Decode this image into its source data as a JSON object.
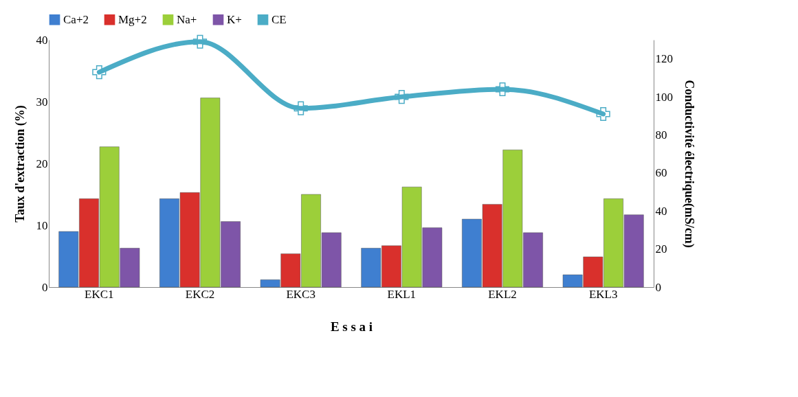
{
  "chart_data": {
    "type": "bar",
    "xlabel": "E s s a i",
    "ylabel": "Taux  d'extraction (%)",
    "y2label": "Conductivité électrique(mS/cm)",
    "categories": [
      "EKC1",
      "EKC2",
      "EKC3",
      "EKL1",
      "EKL2",
      "EKL3"
    ],
    "series": [
      {
        "name": "Ca+2",
        "color": "#3f7fd0",
        "values": [
          9.0,
          14.3,
          1.2,
          6.3,
          11.0,
          2.0
        ]
      },
      {
        "name": "Mg+2",
        "color": "#d9302c",
        "values": [
          14.3,
          15.3,
          5.4,
          6.7,
          13.4,
          4.9
        ]
      },
      {
        "name": "Na+",
        "color": "#9ccf3a",
        "values": [
          22.7,
          30.6,
          15.0,
          16.2,
          22.2,
          14.3
        ]
      },
      {
        "name": "K+",
        "color": "#7e55a8",
        "values": [
          6.3,
          10.6,
          8.8,
          9.6,
          8.8,
          11.7
        ]
      },
      {
        "name": "CE",
        "color": "#4bacc6",
        "type": "line",
        "axis": "y2",
        "marker": "cross",
        "values": [
          113,
          129,
          94,
          100,
          104,
          91
        ]
      }
    ],
    "ylim": [
      0,
      40
    ],
    "yticks": [
      0,
      10,
      20,
      30,
      40
    ],
    "y2lim": [
      0,
      130
    ],
    "y2ticks": [
      0,
      20,
      40,
      60,
      80,
      100,
      120
    ],
    "grid": false,
    "legend": "top"
  }
}
